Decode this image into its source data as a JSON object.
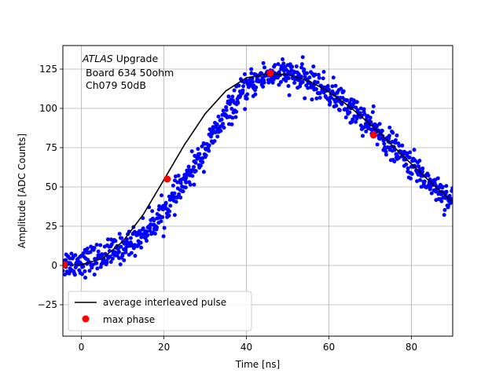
{
  "chart_data": {
    "type": "scatter",
    "title": "",
    "xlabel": "Time [ns]",
    "ylabel": "Amplitude [ADC Counts]",
    "xlim": [
      -4.5,
      90
    ],
    "ylim": [
      -45,
      140
    ],
    "xticks": [
      0,
      20,
      40,
      60,
      80
    ],
    "yticks": [
      -25,
      0,
      25,
      50,
      75,
      100,
      125
    ],
    "grid": true,
    "annotation": {
      "atlas": "ATLAS",
      "upgrade": " Upgrade",
      "board": "Board 634 50ohm",
      "channel": "Ch079 50dB"
    },
    "legend": {
      "position": "lower-left",
      "entries": [
        {
          "label": "average interleaved pulse",
          "color": "#000000",
          "marker": "line"
        },
        {
          "label": "max phase",
          "color": "#ff0000",
          "marker": "dot"
        }
      ]
    },
    "series": [
      {
        "name": "samples",
        "color": "#0000ff",
        "model": "gaussian-rise/gaussian-fall pulse with noise",
        "peak": 122,
        "peak_time": 47,
        "sigma_rise": 17,
        "sigma_fall": 29,
        "noise": 4.5,
        "x_range": [
          -4.5,
          90
        ],
        "count": 900
      },
      {
        "name": "average interleaved pulse",
        "color": "#000000",
        "x": [
          -4.5,
          0,
          5,
          10,
          15,
          20,
          25,
          30,
          35,
          40,
          45,
          47,
          50,
          55,
          60,
          65,
          70,
          75,
          80,
          85,
          90
        ],
        "y": [
          0,
          0.5,
          4.3,
          15.2,
          32.5,
          54.6,
          77.0,
          96.6,
          111.1,
          119.5,
          121.7,
          122.0,
          121.4,
          117.6,
          110.6,
          101.1,
          89.9,
          77.4,
          64.6,
          52.1,
          40.6
        ]
      },
      {
        "name": "max phase",
        "color": "#ff0000",
        "x": [
          -4.2,
          20.8,
          45.8,
          70.8
        ],
        "y": [
          0.5,
          55,
          122.5,
          83
        ]
      }
    ]
  }
}
